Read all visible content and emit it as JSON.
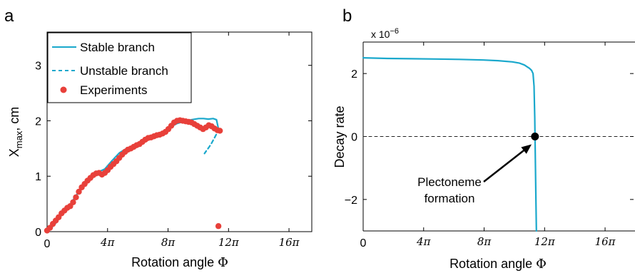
{
  "chart_data": [
    {
      "panel": "a",
      "type": "line",
      "xlabel_main": "Rotation angle",
      "xlabel_symbol": "Φ",
      "ylabel_main": "X",
      "ylabel_sub": "max",
      "ylabel_unit": ", cm",
      "xlim": [
        0,
        55
      ],
      "ylim": [
        0,
        3.6
      ],
      "xticks": [
        0,
        12.566,
        25.133,
        37.699,
        50.265
      ],
      "xtick_labels": [
        "0",
        "4π",
        "8π",
        "12π",
        "16π"
      ],
      "yticks": [
        0,
        1,
        2,
        3
      ],
      "ytick_labels": [
        "0",
        "1",
        "2",
        "3"
      ],
      "legend_position": "top-left",
      "legend": [
        {
          "label": "Stable branch",
          "style": "solid",
          "color": "#1aa8cc"
        },
        {
          "label": "Unstable branch",
          "style": "dashed",
          "color": "#1aa8cc"
        },
        {
          "label": "Experiments",
          "style": "marker",
          "color": "#e8403a"
        }
      ],
      "series": [
        {
          "name": "Stable branch",
          "style": "solid",
          "color": "#1aa8cc",
          "x": [
            0,
            1.5,
            3,
            4.5,
            6,
            7.5,
            9,
            10.5,
            12,
            13.5,
            15,
            16.5,
            18,
            19.5,
            21,
            22.5,
            24,
            25.5,
            27,
            28.5,
            30,
            31.5,
            32.5,
            33.5,
            34.5,
            35.2,
            35.6
          ],
          "y": [
            0,
            0.12,
            0.3,
            0.45,
            0.65,
            0.82,
            0.97,
            1.07,
            1.13,
            1.28,
            1.42,
            1.5,
            1.55,
            1.62,
            1.69,
            1.73,
            1.78,
            1.88,
            1.95,
            1.99,
            2.02,
            2.04,
            2.04,
            2.03,
            2.04,
            2.02,
            1.86
          ]
        },
        {
          "name": "Unstable branch",
          "style": "dashed",
          "color": "#1aa8cc",
          "x": [
            35.6,
            35.2,
            34.7,
            34.2,
            33.7,
            33.2,
            32.7
          ],
          "y": [
            1.86,
            1.76,
            1.68,
            1.6,
            1.53,
            1.47,
            1.41
          ]
        },
        {
          "name": "Experiments",
          "style": "marker",
          "color": "#e8403a",
          "x": [
            0,
            0.6,
            1.2,
            1.8,
            2.4,
            3,
            3.6,
            4.2,
            4.8,
            5.4,
            6,
            6.6,
            7.2,
            7.8,
            8.4,
            9,
            9.6,
            10.2,
            10.8,
            11.4,
            12,
            12.6,
            13.2,
            13.8,
            14.4,
            15,
            15.6,
            16.2,
            16.8,
            17.4,
            18,
            18.6,
            19.2,
            19.8,
            20.4,
            21,
            21.6,
            22.2,
            22.8,
            23.4,
            24,
            24.6,
            25.2,
            25.8,
            26.4,
            27,
            27.6,
            28.2,
            28.8,
            29.4,
            30,
            30.6,
            31.2,
            31.8,
            32.4,
            33,
            33.6,
            34.2,
            34.8,
            35.4,
            35.9,
            35.6
          ],
          "y": [
            0.02,
            0.07,
            0.14,
            0.2,
            0.26,
            0.33,
            0.38,
            0.43,
            0.46,
            0.53,
            0.62,
            0.72,
            0.8,
            0.86,
            0.92,
            0.97,
            1.02,
            1.05,
            1.06,
            1.03,
            1.06,
            1.11,
            1.17,
            1.22,
            1.27,
            1.33,
            1.39,
            1.44,
            1.48,
            1.5,
            1.53,
            1.56,
            1.58,
            1.62,
            1.66,
            1.69,
            1.7,
            1.72,
            1.74,
            1.75,
            1.77,
            1.8,
            1.85,
            1.91,
            1.97,
            2.0,
            2.01,
            2.0,
            1.99,
            1.98,
            1.97,
            1.94,
            1.91,
            1.88,
            1.85,
            1.88,
            1.92,
            1.9,
            1.86,
            1.83,
            1.82,
            0.1
          ]
        }
      ]
    },
    {
      "panel": "b",
      "type": "line",
      "xlabel_main": "Rotation angle",
      "xlabel_symbol": "Φ",
      "ylabel": "Decay rate",
      "y_multiplier_base": "x 10",
      "y_multiplier_exp": "−6",
      "xlim": [
        0,
        55
      ],
      "ylim": [
        -3,
        3
      ],
      "xticks": [
        0,
        12.566,
        25.133,
        37.699,
        50.265
      ],
      "xtick_labels": [
        "0",
        "4π",
        "8π",
        "12π",
        "16π"
      ],
      "yticks": [
        -2,
        0,
        2
      ],
      "ytick_labels": [
        "−2",
        "0",
        "2"
      ],
      "series": [
        {
          "name": "Decay rate",
          "style": "solid",
          "color": "#1aa8cc",
          "x": [
            0,
            5,
            10,
            15,
            20,
            25,
            28,
            31,
            32.5,
            33.5,
            34.2,
            34.6,
            35.0,
            35.3,
            35.5,
            35.6,
            35.65,
            35.7,
            35.8,
            35.9,
            36.0
          ],
          "y": [
            2.5,
            2.48,
            2.47,
            2.46,
            2.45,
            2.43,
            2.41,
            2.37,
            2.33,
            2.27,
            2.2,
            2.16,
            2.1,
            2.0,
            1.6,
            1.0,
            0.6,
            0.1,
            -1.0,
            -2.1,
            -3.0
          ]
        },
        {
          "name": "Zero line",
          "style": "dashed",
          "color": "#222222",
          "x": [
            0,
            55
          ],
          "y": [
            0,
            0
          ]
        }
      ],
      "marker": {
        "x": 35.7,
        "y": 0,
        "color": "#000000"
      },
      "annotation": {
        "lines": [
          "Plectoneme",
          "formation"
        ],
        "arrow_to": {
          "x": 35.0,
          "y": -0.25
        }
      }
    }
  ]
}
